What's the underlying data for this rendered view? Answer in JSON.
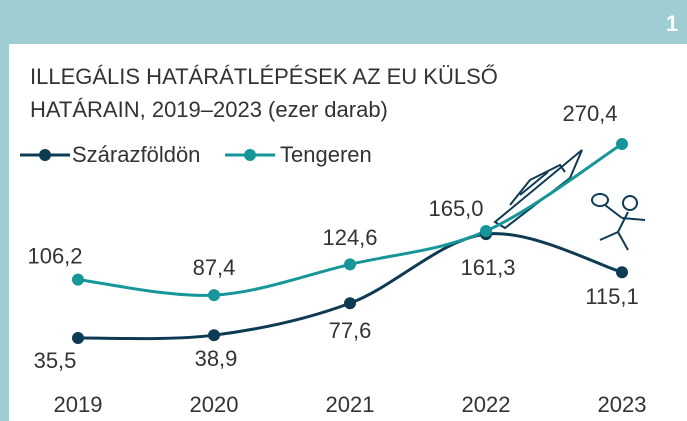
{
  "badge": "1",
  "chart_data": {
    "type": "line",
    "title": "ILLEGÁLIS HATÁRÁTLÉPÉSEK AZ EU KÜLSŐ HATÁRAIN, 2019–2023 (ezer darab)",
    "categories": [
      "2019",
      "2020",
      "2021",
      "2022",
      "2023"
    ],
    "series": [
      {
        "name": "Szárazföldön",
        "color": "#0d3b54",
        "values": [
          35.5,
          38.9,
          77.6,
          161.3,
          115.1
        ],
        "value_labels": [
          "35,5",
          "38,9",
          "77,6",
          "161,3",
          "115,1"
        ]
      },
      {
        "name": "Tengeren",
        "color": "#17969a",
        "values": [
          106.2,
          87.4,
          124.6,
          165.0,
          270.4
        ],
        "value_labels": [
          "106,2",
          "87,4",
          "124,6",
          "165,0",
          "270,4"
        ]
      }
    ],
    "legend": "top-left",
    "grid": false
  }
}
